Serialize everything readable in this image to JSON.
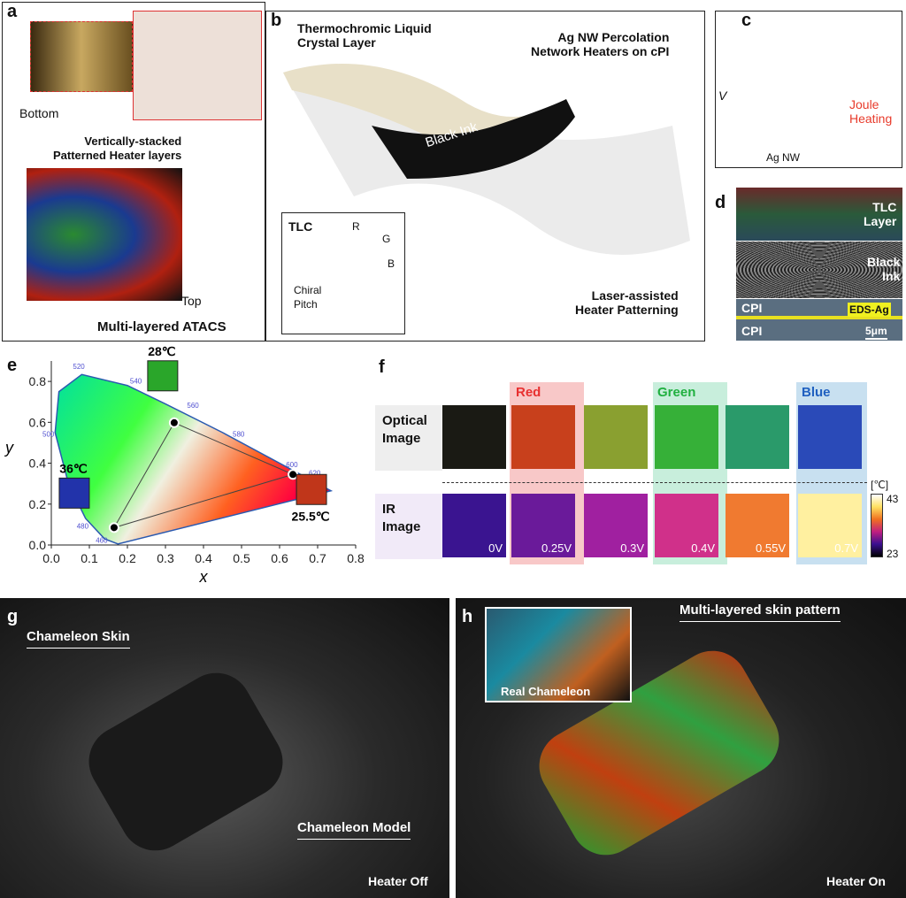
{
  "panels": {
    "a": "a",
    "b": "b",
    "c": "c",
    "d": "d",
    "e": "e",
    "f": "f",
    "g": "g",
    "h": "h"
  },
  "a": {
    "bottom": "Bottom",
    "top": "Top",
    "stacked": "Vertically-stacked\nPatterned Heater layers",
    "atacs": "Multi-layered ATACS"
  },
  "b": {
    "tlc_layer": "Thermochromic Liquid\nCrystal Layer",
    "agnw": "Ag NW Percolation\nNetwork Heaters on cPI",
    "black_ink": "Black Ink",
    "laser": "Laser-assisted\nHeater Patterning",
    "inset_title": "TLC",
    "r": "R",
    "g": "G",
    "b": "B",
    "chiral": "Chiral\nPitch"
  },
  "c": {
    "v": "V",
    "joule": "Joule\nHeating",
    "agnw": "Ag NW"
  },
  "d": {
    "tlc": "TLC\nLayer",
    "ink": "Black\nInk",
    "cpi1": "CPI",
    "cpi2": "CPI",
    "eds": "EDS-Ag",
    "scale": "5μm"
  },
  "chart_data": {
    "type": "scatter",
    "xlabel": "x",
    "ylabel": "y",
    "xlim": [
      0,
      0.8
    ],
    "ylim": [
      0,
      0.9
    ],
    "xticks": [
      "0.0",
      "0.1",
      "0.2",
      "0.3",
      "0.4",
      "0.5",
      "0.6",
      "0.7",
      "0.8"
    ],
    "yticks": [
      "0.0",
      "0.2",
      "0.4",
      "0.6",
      "0.8"
    ],
    "wavelength_labels": [
      "460",
      "480",
      "500",
      "520",
      "540",
      "560",
      "580",
      "600",
      "620"
    ],
    "points": [
      {
        "label": "25.5℃",
        "x": 0.635,
        "y": 0.345,
        "color": "#c0361a"
      },
      {
        "label": "28℃",
        "x": 0.323,
        "y": 0.598,
        "color": "#2aa62a"
      },
      {
        "label": "36℃",
        "x": 0.165,
        "y": 0.085,
        "color": "#2233aa"
      }
    ]
  },
  "f": {
    "red": "Red",
    "green": "Green",
    "blue": "Blue",
    "optical": "Optical\nImage",
    "ir": "IR\nImage",
    "unit": "[℃]",
    "cmax": "43",
    "cmin": "23",
    "voltages": [
      "0V",
      "0.25V",
      "0.3V",
      "0.4V",
      "0.55V",
      "0.7V"
    ],
    "optical_colors": [
      "#1a1a14",
      "#c8401c",
      "#8aa030",
      "#36b038",
      "#2a9a6a",
      "#2a4ab8"
    ],
    "ir_colors": [
      "#3a1490",
      "#6a1a9a",
      "#a020a0",
      "#d0308a",
      "#f07a30",
      "#fff0a0"
    ]
  },
  "g": {
    "skin": "Chameleon Skin",
    "model": "Chameleon Model",
    "status": "Heater Off"
  },
  "h": {
    "pattern": "Multi-layered skin pattern",
    "real": "Real Chameleon",
    "status": "Heater On"
  }
}
